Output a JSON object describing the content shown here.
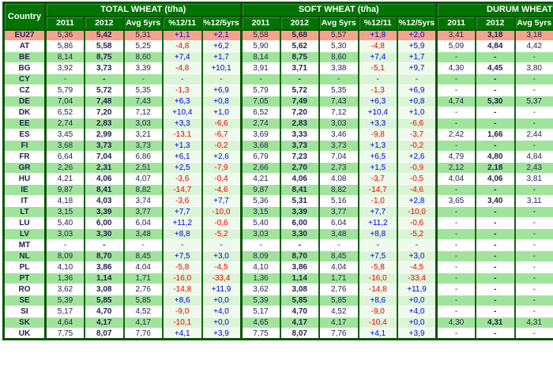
{
  "chart_data": {
    "type": "table",
    "title": "",
    "country_header": "Country",
    "groups": [
      {
        "key": "total",
        "label": "TOTAL WHEAT (t/ha)",
        "cols": [
          "2011",
          "2012",
          "Avg 5yrs",
          "%12/11",
          "%12/5yrs"
        ]
      },
      {
        "key": "soft",
        "label": "SOFT WHEAT (t/ha)",
        "cols": [
          "2011",
          "2012",
          "Avg 5yrs",
          "%12/11",
          "%12/5yrs"
        ]
      },
      {
        "key": "durum",
        "label": "DURUM WHEAT (",
        "cols": [
          "2011",
          "2012",
          "Avg 5yrs"
        ],
        "clipped_at_right_edge": true
      }
    ],
    "rows": [
      {
        "country": "EU27",
        "shade": "eu",
        "total": [
          "5,36",
          "5,42",
          "5,31",
          "+1,1",
          "+2,1"
        ],
        "soft": [
          "5,58",
          "5,68",
          "5,57",
          "+1,8",
          "+2,0"
        ],
        "durum": [
          "3,41",
          "3,18",
          "3,18"
        ]
      },
      {
        "country": "AT",
        "shade": "white",
        "total": [
          "5,86",
          "5,58",
          "5,25",
          "-4,8",
          "+6,2"
        ],
        "soft": [
          "5,90",
          "5,62",
          "5,30",
          "-4,8",
          "+5,9"
        ],
        "durum": [
          "5,09",
          "4,84",
          "4,42"
        ]
      },
      {
        "country": "BE",
        "shade": "green",
        "total": [
          "8,14",
          "8,75",
          "8,60",
          "+7,4",
          "+1,7"
        ],
        "soft": [
          "8,14",
          "8,75",
          "8,60",
          "+7,4",
          "+1,7"
        ],
        "durum": [
          "-",
          "-",
          "-"
        ]
      },
      {
        "country": "BG",
        "shade": "white",
        "total": [
          "3,92",
          "3,73",
          "3,39",
          "-4,8",
          "+10,1"
        ],
        "soft": [
          "3,91",
          "3,71",
          "3,38",
          "-5,1",
          "+9,7"
        ],
        "durum": [
          "4,30",
          "4,45",
          "3,80"
        ]
      },
      {
        "country": "CY",
        "shade": "green",
        "total": [
          "-",
          "-",
          "-",
          "-",
          "-"
        ],
        "soft": [
          "-",
          "-",
          "-",
          "-",
          "-"
        ],
        "durum": [
          "-",
          "-",
          "-"
        ]
      },
      {
        "country": "CZ",
        "shade": "white",
        "total": [
          "5,79",
          "5,72",
          "5,35",
          "-1,3",
          "+6,9"
        ],
        "soft": [
          "5,79",
          "5,72",
          "5,35",
          "-1,3",
          "+6,9"
        ],
        "durum": [
          "-",
          "-",
          "-"
        ]
      },
      {
        "country": "DE",
        "shade": "green",
        "total": [
          "7,04",
          "7,48",
          "7,43",
          "+6,3",
          "+0,8"
        ],
        "soft": [
          "7,05",
          "7,49",
          "7,43",
          "+6,3",
          "+0,8"
        ],
        "durum": [
          "4,74",
          "5,30",
          "5,37"
        ]
      },
      {
        "country": "DK",
        "shade": "white",
        "total": [
          "6,52",
          "7,20",
          "7,12",
          "+10,4",
          "+1,0"
        ],
        "soft": [
          "6,52",
          "7,20",
          "7,12",
          "+10,4",
          "+1,0"
        ],
        "durum": [
          "-",
          "-",
          "-"
        ]
      },
      {
        "country": "EE",
        "shade": "green",
        "total": [
          "2,74",
          "2,83",
          "3,03",
          "+3,3",
          "-6,6"
        ],
        "soft": [
          "2,74",
          "2,83",
          "3,03",
          "+3,3",
          "-6,6"
        ],
        "durum": [
          "-",
          "-",
          "-"
        ]
      },
      {
        "country": "ES",
        "shade": "white",
        "total": [
          "3,45",
          "2,99",
          "3,21",
          "-13,1",
          "-6,7"
        ],
        "soft": [
          "3,69",
          "3,33",
          "3,46",
          "-9,8",
          "-3,7"
        ],
        "durum": [
          "2,42",
          "1,66",
          "2,44"
        ]
      },
      {
        "country": "FI",
        "shade": "green",
        "total": [
          "3,68",
          "3,73",
          "3,73",
          "+1,3",
          "-0,2"
        ],
        "soft": [
          "3,68",
          "3,73",
          "3,73",
          "+1,3",
          "-0,2"
        ],
        "durum": [
          "-",
          "-",
          "-"
        ]
      },
      {
        "country": "FR",
        "shade": "white",
        "total": [
          "6,64",
          "7,04",
          "6,86",
          "+6,1",
          "+2,6"
        ],
        "soft": [
          "6,79",
          "7,23",
          "7,04",
          "+6,5",
          "+2,6"
        ],
        "durum": [
          "4,79",
          "4,80",
          "4,84"
        ]
      },
      {
        "country": "GR",
        "shade": "green",
        "total": [
          "2,26",
          "2,31",
          "2,51",
          "+2,5",
          "-7,9"
        ],
        "soft": [
          "2,66",
          "2,70",
          "2,73",
          "+1,5",
          "-0,9"
        ],
        "durum": [
          "2,12",
          "2,18",
          "2,43"
        ]
      },
      {
        "country": "HU",
        "shade": "white",
        "total": [
          "4,21",
          "4,06",
          "4,07",
          "-3,6",
          "-0,4"
        ],
        "soft": [
          "4,21",
          "4,06",
          "4,08",
          "-3,7",
          "-0,5"
        ],
        "durum": [
          "4,04",
          "4,06",
          "3,81"
        ]
      },
      {
        "country": "IE",
        "shade": "green",
        "total": [
          "9,87",
          "8,41",
          "8,82",
          "-14,7",
          "-4,6"
        ],
        "soft": [
          "9,87",
          "8,41",
          "8,82",
          "-14,7",
          "-4,6"
        ],
        "durum": [
          "-",
          "-",
          "-"
        ]
      },
      {
        "country": "IT",
        "shade": "white",
        "total": [
          "4,18",
          "4,03",
          "3,74",
          "-3,6",
          "+7,7"
        ],
        "soft": [
          "5,36",
          "5,31",
          "5,16",
          "-1,0",
          "+2,8"
        ],
        "durum": [
          "3,65",
          "3,40",
          "3,11"
        ]
      },
      {
        "country": "LT",
        "shade": "green",
        "total": [
          "3,15",
          "3,39",
          "3,77",
          "+7,7",
          "-10,0"
        ],
        "soft": [
          "3,15",
          "3,39",
          "3,77",
          "+7,7",
          "-10,0"
        ],
        "durum": [
          "-",
          "-",
          "-"
        ]
      },
      {
        "country": "LU",
        "shade": "white",
        "total": [
          "5,40",
          "6,00",
          "6,04",
          "+11,2",
          "-0,6"
        ],
        "soft": [
          "5,40",
          "6,00",
          "6,04",
          "+11,2",
          "-0,6"
        ],
        "durum": [
          "-",
          "-",
          "-"
        ]
      },
      {
        "country": "LV",
        "shade": "green",
        "total": [
          "3,03",
          "3,30",
          "3,48",
          "+8,8",
          "-5,2"
        ],
        "soft": [
          "3,03",
          "3,30",
          "3,48",
          "+8,8",
          "-5,2"
        ],
        "durum": [
          "-",
          "-",
          "-"
        ]
      },
      {
        "country": "MT",
        "shade": "white",
        "total": [
          "-",
          "-",
          "-",
          "-",
          "-"
        ],
        "soft": [
          "-",
          "-",
          "-",
          "-",
          "-"
        ],
        "durum": [
          "-",
          "-",
          "-"
        ]
      },
      {
        "country": "NL",
        "shade": "green",
        "total": [
          "8,09",
          "8,70",
          "8,45",
          "+7,5",
          "+3,0"
        ],
        "soft": [
          "8,09",
          "8,70",
          "8,45",
          "+7,5",
          "+3,0"
        ],
        "durum": [
          "-",
          "-",
          "-"
        ]
      },
      {
        "country": "PL",
        "shade": "white",
        "total": [
          "4,10",
          "3,86",
          "4,04",
          "-5,8",
          "-4,5"
        ],
        "soft": [
          "4,10",
          "3,86",
          "4,04",
          "-5,8",
          "-4,5"
        ],
        "durum": [
          "-",
          "-",
          "-"
        ]
      },
      {
        "country": "PT",
        "shade": "green",
        "total": [
          "1,36",
          "1,14",
          "1,71",
          "-16,0",
          "-33,4"
        ],
        "soft": [
          "1,36",
          "1,14",
          "1,71",
          "-16,0",
          "-33,4"
        ],
        "durum": [
          "-",
          "-",
          "-"
        ]
      },
      {
        "country": "RO",
        "shade": "white",
        "total": [
          "3,62",
          "3,08",
          "2,76",
          "-14,8",
          "+11,9"
        ],
        "soft": [
          "3,62",
          "3,08",
          "2,76",
          "-14,8",
          "+11,9"
        ],
        "durum": [
          "-",
          "-",
          "-"
        ]
      },
      {
        "country": "SE",
        "shade": "green",
        "total": [
          "5,39",
          "5,85",
          "5,85",
          "+8,6",
          "+0,0"
        ],
        "soft": [
          "5,39",
          "5,85",
          "5,85",
          "+8,6",
          "+0,0"
        ],
        "durum": [
          "-",
          "-",
          "-"
        ]
      },
      {
        "country": "SI",
        "shade": "white",
        "total": [
          "5,17",
          "4,70",
          "4,52",
          "-9,0",
          "+4,0"
        ],
        "soft": [
          "5,17",
          "4,70",
          "4,52",
          "-9,0",
          "+4,0"
        ],
        "durum": [
          "-",
          "-",
          "-"
        ]
      },
      {
        "country": "SK",
        "shade": "green",
        "total": [
          "4,64",
          "4,17",
          "4,17",
          "-10,1",
          "+0,0"
        ],
        "soft": [
          "4,65",
          "4,17",
          "4,17",
          "-10,4",
          "+0,0"
        ],
        "durum": [
          "4,30",
          "4,31",
          "4,31"
        ]
      },
      {
        "country": "UK",
        "shade": "white",
        "total": [
          "7,75",
          "8,07",
          "7,76",
          "+4,1",
          "+3,9"
        ],
        "soft": [
          "7,75",
          "8,07",
          "7,76",
          "+4,1",
          "+3,9"
        ],
        "durum": [
          "-",
          "-",
          "-"
        ]
      }
    ],
    "colors": {
      "header_green": "#007300",
      "border_green": "#0A5408",
      "row_stripe_green": "#A0E49B",
      "eu27_highlight_salmon": "#F8A28D",
      "pct_tint_on_green_rows": "#DBF4D6",
      "pct_tint_on_white_rows": "#EEFAEB",
      "positive_value_blue": "#0000E6",
      "negative_value_red": "#F40000",
      "value_text_navy": "#23234F"
    },
    "legend": {
      "positive_numbers": "blue with leading +",
      "negative_numbers": "red with leading -",
      "missing_value": "-"
    }
  }
}
